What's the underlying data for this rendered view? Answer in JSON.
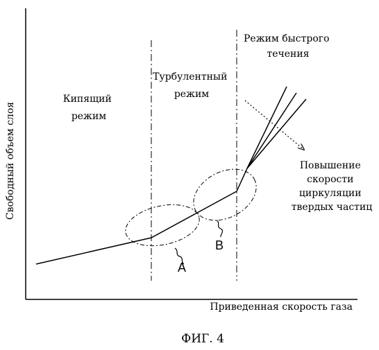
{
  "axes": {
    "ylabel": "Свободный объем слоя",
    "xlabel": "Приведенная скорость газа"
  },
  "regions": {
    "bubbling": [
      "Кипящий",
      "режим"
    ],
    "turbulent": [
      "Турбулентный",
      "режим"
    ],
    "fast": [
      "Режим быстрого",
      "течения"
    ]
  },
  "annotation": [
    "Повышение",
    "скорости",
    "циркуляции",
    "твердых частиц"
  ],
  "markers": {
    "a": "A",
    "b": "B"
  },
  "caption": "ФИГ. 4"
}
